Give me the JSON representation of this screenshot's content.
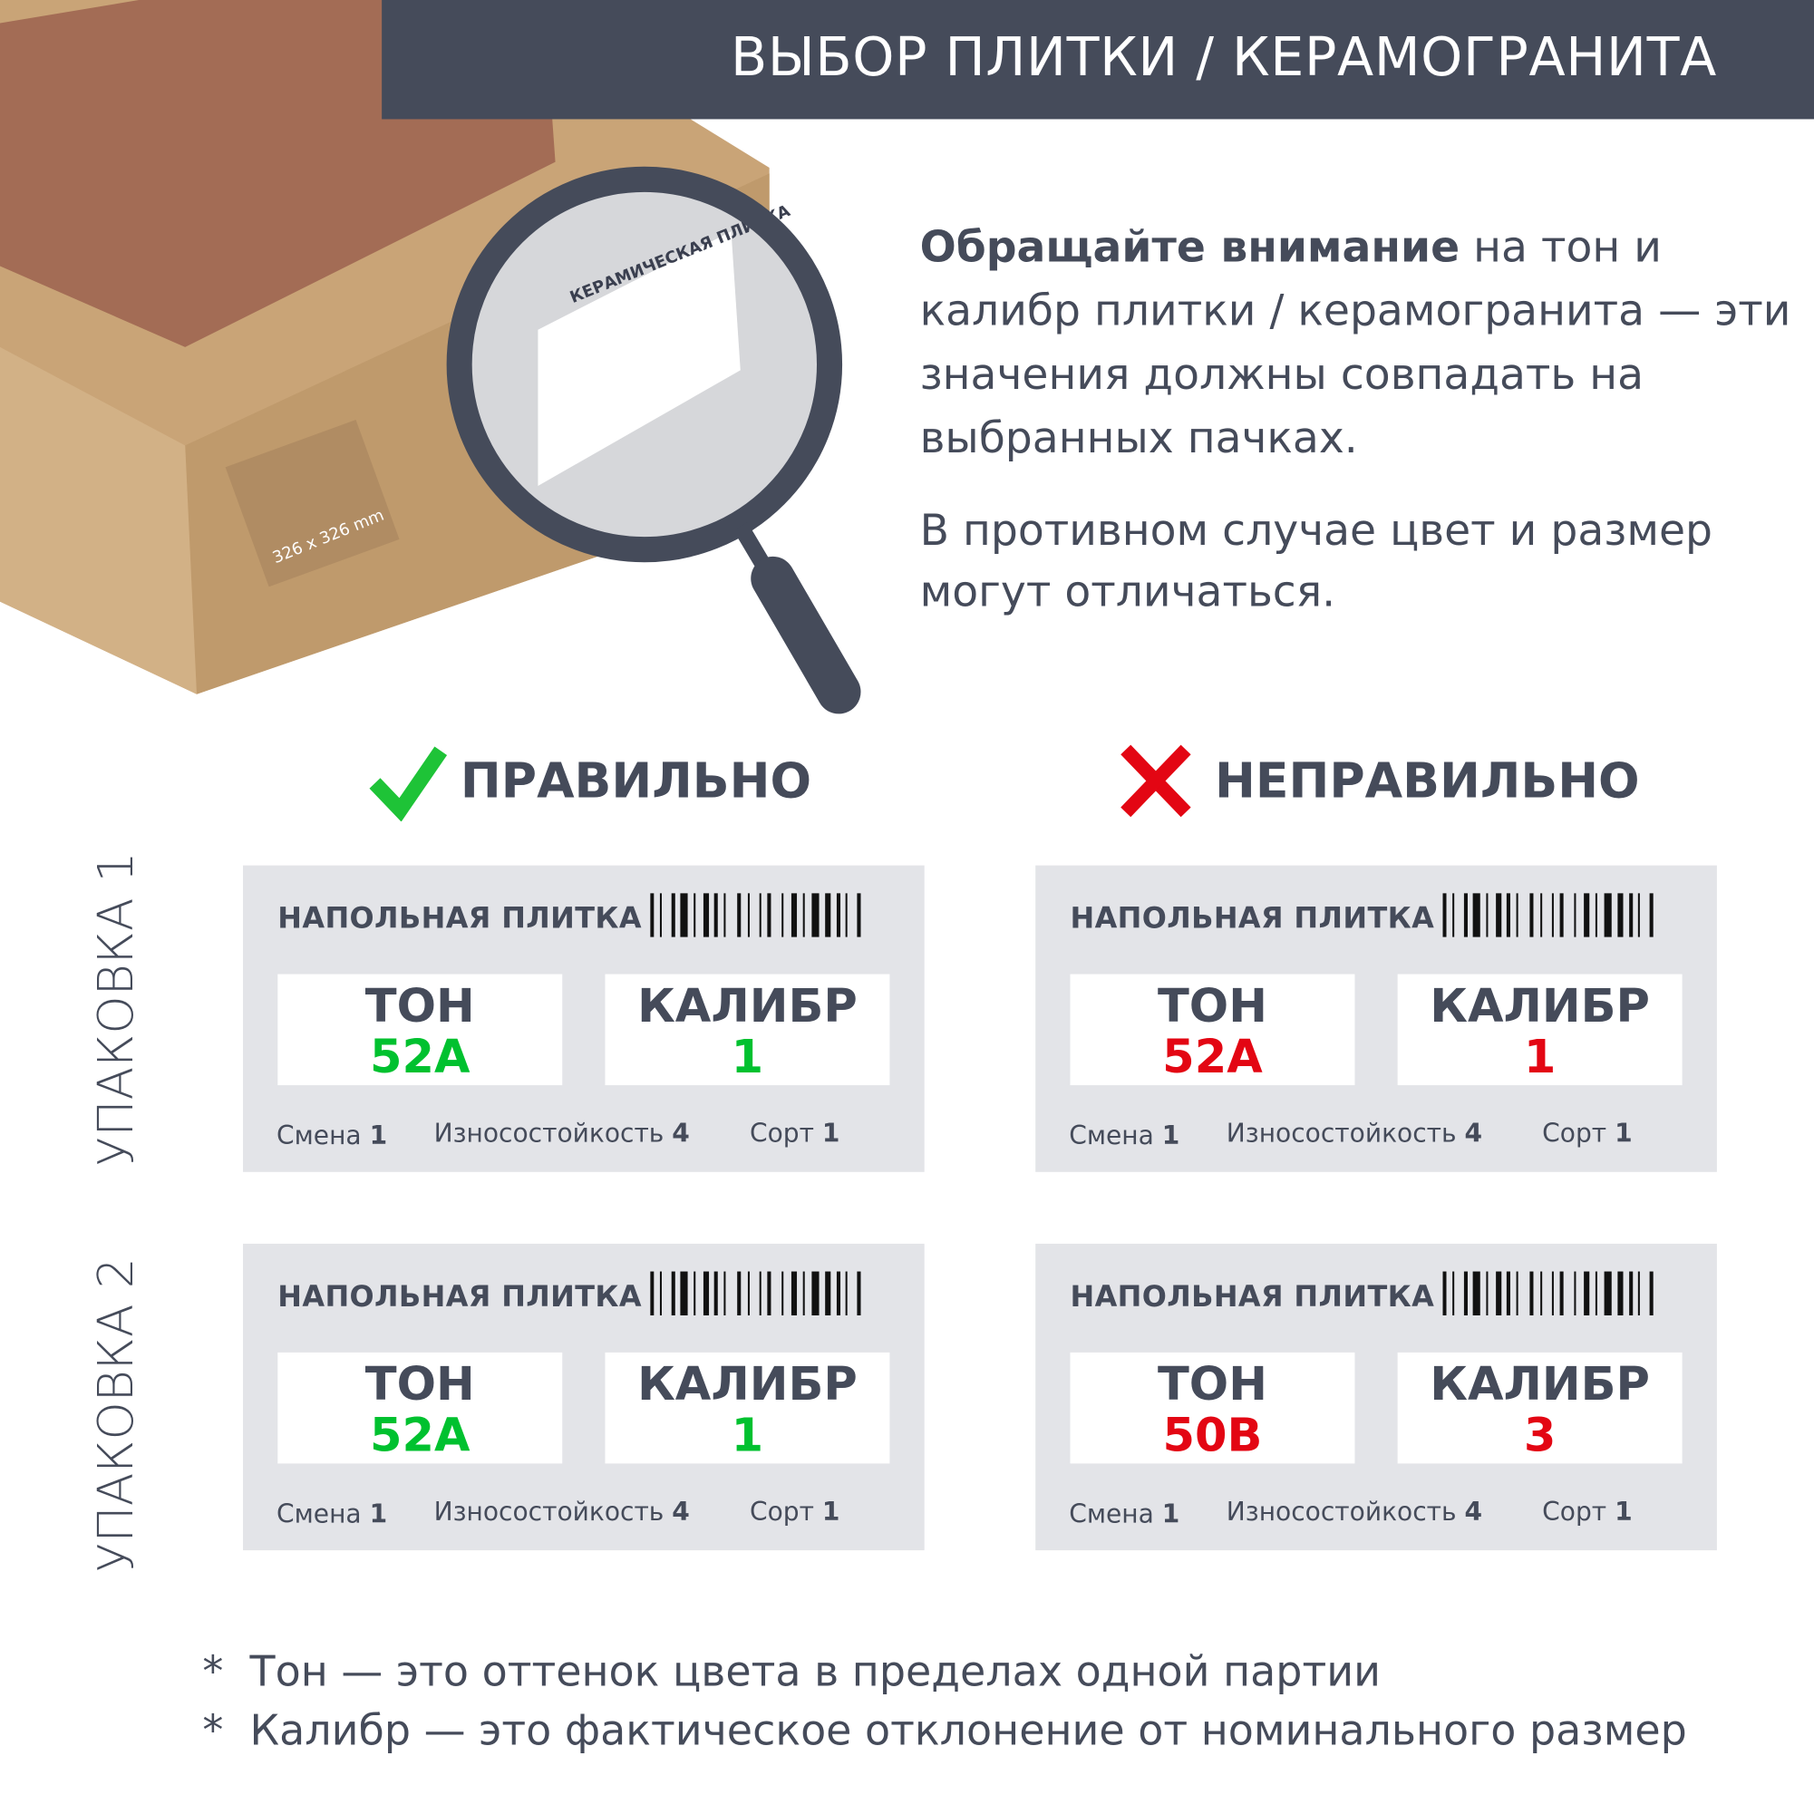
{
  "header": {
    "title": "ВЫБОР ПЛИТКИ / КЕРАМОГРАНИТА"
  },
  "intro": {
    "bold": "Обращайте внимание",
    "rest": " на тон и калибр плитки / керамогранита — эти значения должны совпадать на выбранных пачках.",
    "second": "В противном случае цвет и размер могут отличаться."
  },
  "illustration": {
    "box_label": "КЕРАМИЧЕСКАЯ ПЛИТКА",
    "box_size": "326 x 326 mm",
    "icon": "magnifier-icon"
  },
  "verdicts": {
    "correct": "ПРАВИЛЬНО",
    "wrong": "НЕПРАВИЛЬНО",
    "correct_icon": "checkmark-icon",
    "wrong_icon": "cross-icon"
  },
  "rows": [
    "УПАКОВКА 1",
    "УПАКОВКА 2"
  ],
  "colors": {
    "dark": "#454b5a",
    "green": "#00c12f",
    "red": "#e30613",
    "card": "#e3e4e8"
  },
  "cards": [
    {
      "title": "НАПОЛЬНАЯ ПЛИТКА",
      "ton_label": "ТОН",
      "ton": "52А",
      "cal_label": "КАЛИБР",
      "cal": "1",
      "shift_label": "Смена",
      "shift": "1",
      "wear_label": "Износостойкость",
      "wear": "4",
      "grade_label": "Сорт",
      "grade": "1"
    },
    {
      "title": "НАПОЛЬНАЯ ПЛИТКА",
      "ton_label": "ТОН",
      "ton": "52А",
      "cal_label": "КАЛИБР",
      "cal": "1",
      "shift_label": "Смена",
      "shift": "1",
      "wear_label": "Износостойкость",
      "wear": "4",
      "grade_label": "Сорт",
      "grade": "1"
    },
    {
      "title": "НАПОЛЬНАЯ ПЛИТКА",
      "ton_label": "ТОН",
      "ton": "52А",
      "cal_label": "КАЛИБР",
      "cal": "1",
      "shift_label": "Смена",
      "shift": "1",
      "wear_label": "Износостойкость",
      "wear": "4",
      "grade_label": "Сорт",
      "grade": "1"
    },
    {
      "title": "НАПОЛЬНАЯ ПЛИТКА",
      "ton_label": "ТОН",
      "ton": "50В",
      "cal_label": "КАЛИБР",
      "cal": "3",
      "shift_label": "Смена",
      "shift": "1",
      "wear_label": "Износостойкость",
      "wear": "4",
      "grade_label": "Сорт",
      "grade": "1"
    }
  ],
  "notes": [
    {
      "star": "*",
      "term": "Тон",
      "text": " — это оттенок цвета в пределах одной партии"
    },
    {
      "star": "*",
      "term": "Калибр",
      "text": " — это фактическое отклонение от номинального размер"
    }
  ]
}
